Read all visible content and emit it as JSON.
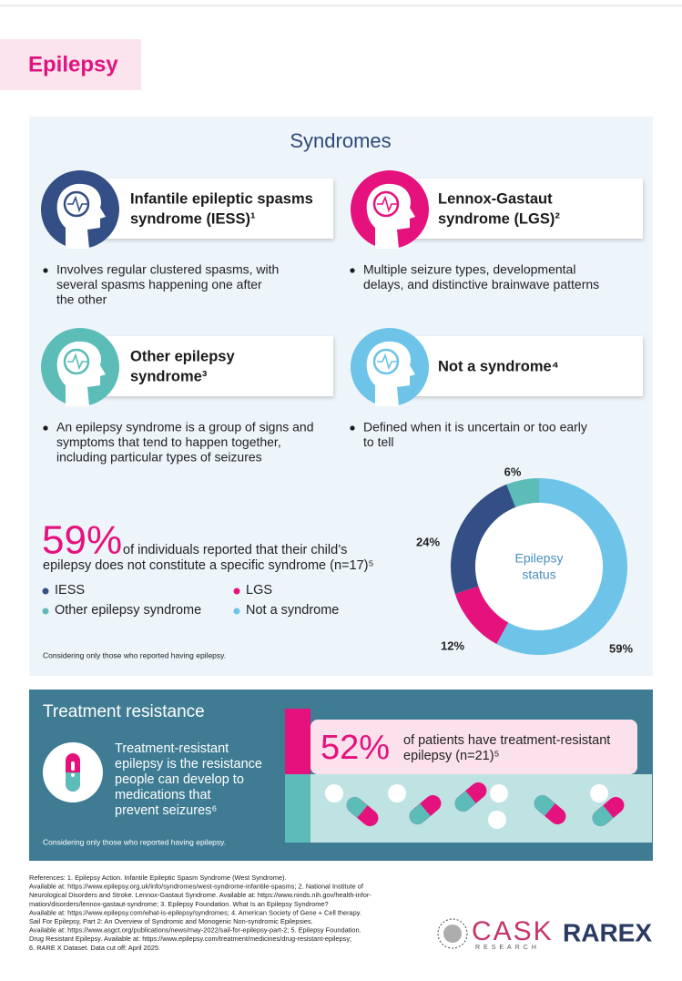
{
  "header": {
    "title": "Epilepsy"
  },
  "syndromes": {
    "title": "Syndromes",
    "items": [
      {
        "name_lines": [
          "Infantile epileptic spasms",
          "syndrome (IESS)¹"
        ],
        "description_lines": [
          "Involves regular clustered spasms, with",
          "several spasms happening one after",
          "the other"
        ]
      },
      {
        "name_lines": [
          "Lennox-Gastaut",
          "syndrome (LGS)²"
        ],
        "description_lines": [
          "Multiple seizure types, developmental",
          "delays, and distinctive brainwave patterns"
        ]
      },
      {
        "name_lines": [
          "Other epilepsy",
          "syndrome³"
        ],
        "description_lines": [
          "An epilepsy syndrome is a group of signs and",
          "symptoms that tend to happen together,",
          "including particular types of seizures"
        ]
      },
      {
        "name_lines": [
          "Not a syndrome⁴"
        ],
        "description_lines": [
          "Defined when it is uncertain or too early",
          "to tell"
        ]
      }
    ]
  },
  "chart_data": {
    "type": "pie",
    "donut": true,
    "center_label": [
      "Epilepsy",
      "status"
    ],
    "categories": [
      "IESS",
      "LGS",
      "Other epilepsy syndrome",
      "Not a syndrome"
    ],
    "values": [
      24,
      12,
      6,
      59
    ],
    "value_labels": [
      "24%",
      "12%",
      "6%",
      "59%"
    ],
    "colors": [
      "#344f86",
      "#e5127e",
      "#5bbcb8",
      "#6dc3e8"
    ]
  },
  "summary": {
    "stat": "59%",
    "text_lines": [
      "of individuals reported that their child’s",
      "epilepsy does not constitute a specific syndrome (n=17)⁵"
    ],
    "note": "Considering only those who reported having epilepsy."
  },
  "treatment": {
    "title": "Treatment resistance",
    "text_lines": [
      "Treatment-resistant",
      "epilepsy is the resistance",
      "people can develop to",
      "medications that",
      "prevent seizures⁶"
    ],
    "stat": "52%",
    "stat_lines": [
      "of patients have treatment-resistant",
      "epilepsy (n=21)⁵"
    ],
    "note": "Considering only those who reported having epilepsy."
  },
  "references": [
    "References: 1. Epilepsy Action. Infantile Epileptic Spasm Syndrome (West Syndrome).",
    "Available at: https://www.epilepsy.org.uk/info/syndromes/west-syndrome-infantile-spasms; 2. National Institute of",
    "Neurological Disorders and Stroke. Lennox-Gastaut Syndrome. Available at: https://www.ninds.nih.gov/health-infor-",
    "mation/disorders/lennox-gastaut-syndrome; 3. Epilepsy Foundation. What Is an Epilepsy Syndrome?",
    "Available at: https://www.epilepsy.com/what-is-epilepsy/syndromes; 4. American Society of Gene + Cell therapy.",
    "Sail For Epilepsy, Part 2: An Overview of Syndromic and Monogenic Non-syndromic Epilepsies.",
    "Available at: https://www.asgct.org/publications/news/may-2022/sail-for-epilepsy-part-2; 5. Epilepsy Foundation.",
    "Drug Resistant Epilepsy. Available at: https://www.epilepsy.com/treatment/medicines/drug-resistant-epilepsy;",
    "6. RARE X Dataset. Data cut off: April 2025."
  ],
  "logos": {
    "cask": "CASK",
    "cask_sub": "RESEARCH",
    "rarex": "RAREX"
  }
}
